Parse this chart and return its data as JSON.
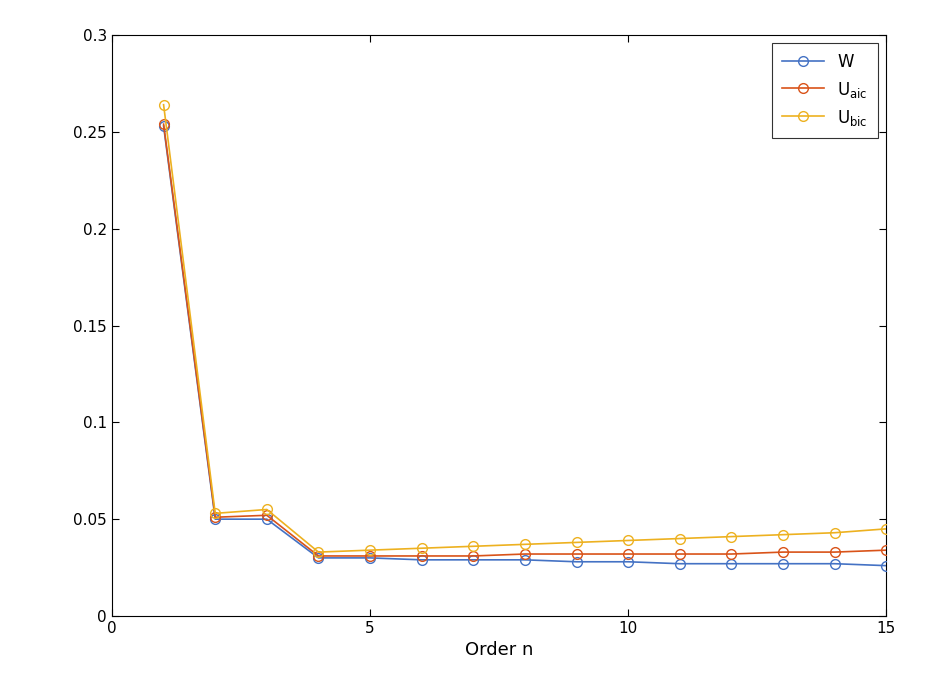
{
  "W": [
    0.253,
    0.05,
    0.05,
    0.03,
    0.03,
    0.029,
    0.029,
    0.029,
    0.028,
    0.028,
    0.027,
    0.027,
    0.027,
    0.027,
    0.026
  ],
  "U_aic": [
    0.254,
    0.051,
    0.052,
    0.031,
    0.031,
    0.031,
    0.031,
    0.032,
    0.032,
    0.032,
    0.032,
    0.032,
    0.033,
    0.033,
    0.034
  ],
  "U_bic": [
    0.264,
    0.053,
    0.055,
    0.033,
    0.034,
    0.035,
    0.036,
    0.037,
    0.038,
    0.039,
    0.04,
    0.041,
    0.042,
    0.043,
    0.045
  ],
  "x": [
    1,
    2,
    3,
    4,
    5,
    6,
    7,
    8,
    9,
    10,
    11,
    12,
    13,
    14,
    15
  ],
  "colors": {
    "W": "#4472C4",
    "U_aic": "#D95319",
    "U_bic": "#EDB120"
  },
  "xlim": [
    0,
    15
  ],
  "ylim": [
    0,
    0.3
  ],
  "xticks": [
    0,
    5,
    10,
    15
  ],
  "yticks": [
    0,
    0.05,
    0.1,
    0.15,
    0.2,
    0.25,
    0.3
  ],
  "xlabel": "Order n",
  "marker": "o",
  "markersize": 7,
  "linewidth": 1.2,
  "figsize": [
    9.33,
    7.0
  ],
  "dpi": 100
}
